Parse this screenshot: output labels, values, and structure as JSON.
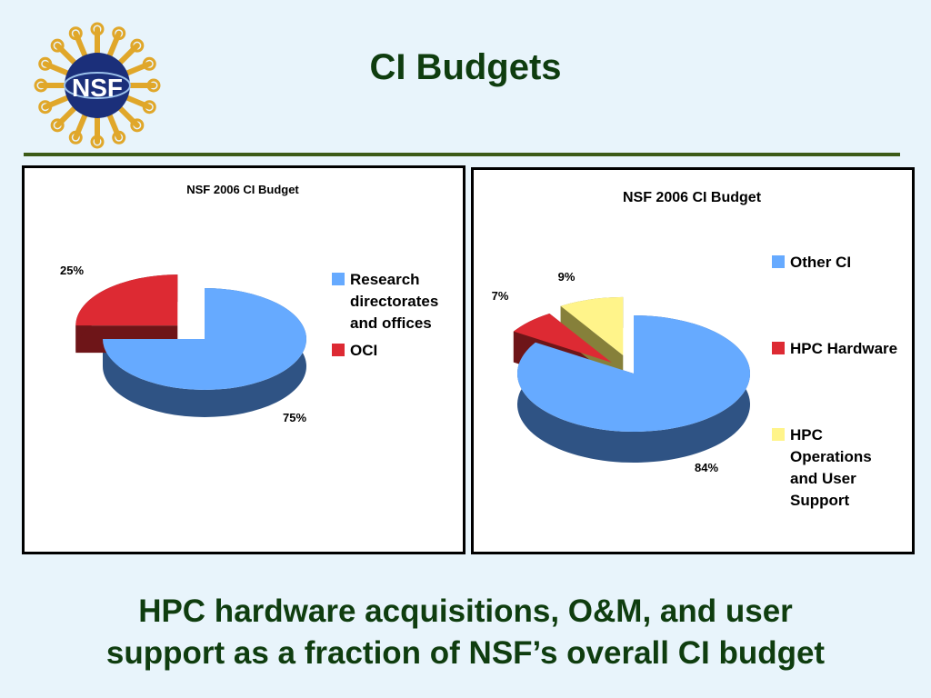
{
  "slide": {
    "title": "CI Budgets",
    "caption_line1": "HPC hardware acquisitions, O&M, and user",
    "caption_line2": "support as a fraction of NSF’s overall CI budget",
    "logo_text": "NSF",
    "rule_color": "#3b5a16",
    "title_color": "#0f3d0f"
  },
  "chart_data": [
    {
      "type": "pie",
      "title": "NSF 2006 CI Budget",
      "legend": "right",
      "slices": [
        {
          "label": "Research directorates and offices",
          "label_lines": [
            "Research",
            "directorates",
            "and offices"
          ],
          "value": 75,
          "value_label": "75%",
          "color": "#66aaff",
          "side_color": "#2f5384"
        },
        {
          "label": "OCI",
          "label_lines": [
            "OCI"
          ],
          "value": 25,
          "value_label": "25%",
          "color": "#dd2a33",
          "side_color": "#6e1518"
        }
      ]
    },
    {
      "type": "pie",
      "title": "NSF 2006 CI Budget",
      "legend": "right",
      "slices": [
        {
          "label": "Other CI",
          "label_lines": [
            "Other CI"
          ],
          "value": 84,
          "value_label": "84%",
          "color": "#66aaff",
          "side_color": "#2f5384"
        },
        {
          "label": "HPC Hardware",
          "label_lines": [
            "HPC Hardware"
          ],
          "value": 7,
          "value_label": "7%",
          "color": "#dd2a33",
          "side_color": "#6e1518"
        },
        {
          "label": "HPC Operations and User Support",
          "label_lines": [
            "HPC",
            "Operations",
            "and User",
            "Support"
          ],
          "value": 9,
          "value_label": "9%",
          "color": "#fff48a",
          "side_color": "#86803a"
        }
      ]
    }
  ]
}
